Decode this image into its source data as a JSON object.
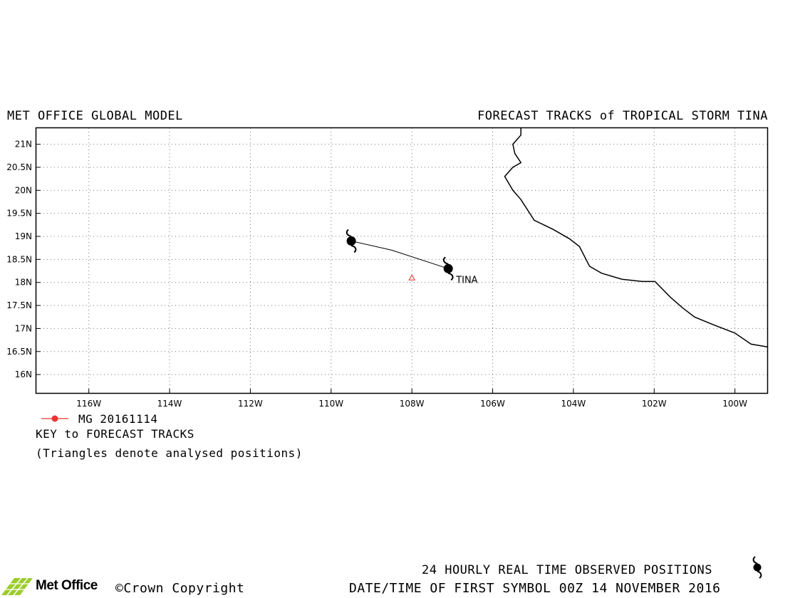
{
  "header": {
    "left_title": "MET OFFICE GLOBAL MODEL",
    "right_title": "FORECAST TRACKS of TROPICAL STORM TINA"
  },
  "map": {
    "lon_range": [
      -117.3,
      -99.2
    ],
    "lat_range": [
      15.6,
      21.35
    ],
    "grid": true,
    "lat_ticks": [
      {
        "value": 21,
        "label": "21N"
      },
      {
        "value": 20.5,
        "label": "20.5N"
      },
      {
        "value": 20,
        "label": "20N"
      },
      {
        "value": 19.5,
        "label": "19.5N"
      },
      {
        "value": 19,
        "label": "19N"
      },
      {
        "value": 18.5,
        "label": "18.5N"
      },
      {
        "value": 18,
        "label": "18N"
      },
      {
        "value": 17.5,
        "label": "17.5N"
      },
      {
        "value": 17,
        "label": "17N"
      },
      {
        "value": 16.5,
        "label": "16.5N"
      },
      {
        "value": 16,
        "label": "16N"
      }
    ],
    "lon_ticks": [
      {
        "value": -116,
        "label": "116W"
      },
      {
        "value": -114,
        "label": "114W"
      },
      {
        "value": -112,
        "label": "112W"
      },
      {
        "value": -110,
        "label": "110W"
      },
      {
        "value": -108,
        "label": "108W"
      },
      {
        "value": -106,
        "label": "106W"
      },
      {
        "value": -104,
        "label": "104W"
      },
      {
        "value": -102,
        "label": "102W"
      },
      {
        "value": -100,
        "label": "100W"
      }
    ],
    "coastline": [
      [
        -105.3,
        21.35
      ],
      [
        -105.3,
        21.2
      ],
      [
        -105.5,
        21.0
      ],
      [
        -105.45,
        20.8
      ],
      [
        -105.3,
        20.6
      ],
      [
        -105.5,
        20.5
      ],
      [
        -105.7,
        20.3
      ],
      [
        -105.5,
        20.0
      ],
      [
        -105.3,
        19.8
      ],
      [
        -104.97,
        19.35
      ],
      [
        -104.5,
        19.15
      ],
      [
        -104.1,
        18.95
      ],
      [
        -103.85,
        18.78
      ],
      [
        -103.6,
        18.35
      ],
      [
        -103.3,
        18.2
      ],
      [
        -102.8,
        18.07
      ],
      [
        -102.3,
        18.02
      ],
      [
        -101.98,
        18.02
      ],
      [
        -101.6,
        17.68
      ],
      [
        -101.3,
        17.45
      ],
      [
        -101.0,
        17.25
      ],
      [
        -100.5,
        17.07
      ],
      [
        -100.0,
        16.9
      ],
      [
        -99.6,
        16.66
      ],
      [
        -99.2,
        16.6
      ]
    ],
    "forecast_track": [
      [
        -109.5,
        18.9
      ],
      [
        -108.5,
        18.7
      ],
      [
        -107.1,
        18.3
      ]
    ],
    "storm_symbols": [
      {
        "lon": -109.5,
        "lat": 18.9
      },
      {
        "lon": -107.1,
        "lat": 18.3
      }
    ],
    "storm_label": {
      "text": "TINA",
      "lon": -107.1,
      "lat": 18.3
    },
    "analysed_positions": [
      {
        "lon": -108.0,
        "lat": 18.1,
        "color": "#e03030"
      }
    ],
    "line_color": "#000000",
    "model_color": "#ee3333"
  },
  "key": {
    "model_run": "MG 20161114",
    "title": "KEY to FORECAST TRACKS",
    "note": "(Triangles denote analysed positions)"
  },
  "footer": {
    "observed_label": "24 HOURLY REAL TIME OBSERVED POSITIONS",
    "datetime_label": "DATE/TIME OF FIRST SYMBOL 00Z 14 NOVEMBER 2016",
    "logo_text": "Met Office",
    "copyright": "©Crown Copyright",
    "logo_color": "#9ccc2c"
  }
}
